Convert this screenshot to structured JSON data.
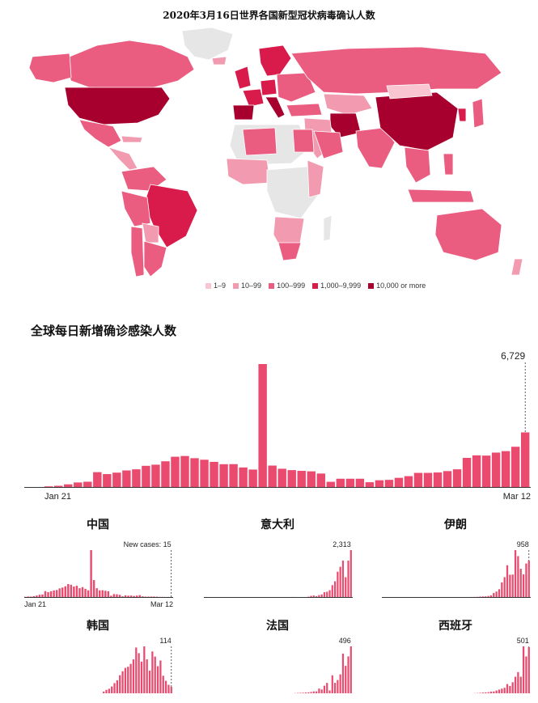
{
  "map": {
    "title": "2020年3月16日世界各国新型冠状病毒确认人数",
    "legend": [
      {
        "label": "1–9",
        "color": "#f8c5d1"
      },
      {
        "label": "10–99",
        "color": "#f29ab0"
      },
      {
        "label": "100–999",
        "color": "#ea5d80"
      },
      {
        "label": "1,000–9,999",
        "color": "#d81b4a"
      },
      {
        "label": "10,000 or more",
        "color": "#a8002e"
      }
    ],
    "no_data_color": "#e6e6e6"
  },
  "chart_data": [
    {
      "type": "bar",
      "title": "全球每日新增确诊感染人数",
      "x_start_label": "Jan 21",
      "x_end_label": "Mar 12",
      "last_value_label": "6,729",
      "values": [
        80,
        150,
        330,
        560,
        650,
        1830,
        1590,
        1770,
        2040,
        2180,
        2610,
        2750,
        3170,
        3730,
        3820,
        3550,
        3360,
        3100,
        2810,
        2820,
        2410,
        2150,
        15150,
        2640,
        2250,
        2080,
        1990,
        1930,
        1660,
        640,
        1020,
        1020,
        1020,
        590,
        830,
        880,
        1130,
        1340,
        1740,
        1740,
        1790,
        1960,
        2180,
        3590,
        3900,
        3870,
        4240,
        4420,
        4960,
        6729
      ],
      "color": "#ea4a6e"
    },
    {
      "type": "bar",
      "title": "中国",
      "x_start_label": "Jan 21",
      "x_end_label": "Mar 12",
      "last_value_label": "New cases: 15",
      "values": [
        77,
        149,
        131,
        259,
        444,
        688,
        769,
        1771,
        1459,
        1737,
        1982,
        2102,
        2590,
        2829,
        3235,
        3887,
        3694,
        3143,
        3385,
        2652,
        2973,
        2467,
        2015,
        14108,
        5090,
        2641,
        2008,
        2048,
        1886,
        1749,
        391,
        889,
        823,
        648,
        214,
        508,
        406,
        433,
        327,
        427,
        573,
        202,
        125,
        119,
        139,
        143,
        99,
        44,
        40,
        19,
        24,
        15
      ],
      "color": "#ea4a6e"
    },
    {
      "type": "bar",
      "title": "意大利",
      "last_value_label": "2,313",
      "values": [
        0,
        0,
        0,
        0,
        0,
        0,
        0,
        0,
        0,
        0,
        0,
        0,
        0,
        0,
        0,
        0,
        0,
        0,
        0,
        0,
        0,
        0,
        0,
        0,
        0,
        0,
        0,
        0,
        0,
        0,
        0,
        0,
        0,
        3,
        0,
        0,
        0,
        0,
        0,
        17,
        59,
        76,
        43,
        95,
        128,
        236,
        259,
        336,
        584,
        779,
        1247,
        1492,
        1797,
        977,
        1797,
        2313
      ],
      "color": "#ea4a6e"
    },
    {
      "type": "bar",
      "title": "伊朗",
      "last_value_label": "958",
      "values": [
        0,
        0,
        0,
        0,
        0,
        0,
        0,
        0,
        0,
        0,
        0,
        0,
        0,
        0,
        0,
        0,
        0,
        0,
        0,
        0,
        0,
        0,
        0,
        0,
        0,
        0,
        0,
        0,
        0,
        0,
        0,
        0,
        0,
        2,
        3,
        5,
        10,
        15,
        18,
        28,
        44,
        106,
        143,
        205,
        385,
        523,
        835,
        586,
        591,
        1234,
        1076,
        743,
        595,
        881,
        958
      ],
      "color": "#ea4a6e"
    },
    {
      "type": "bar",
      "title": "韩国",
      "last_value_label": "114",
      "values": [
        0,
        0,
        0,
        0,
        0,
        0,
        0,
        0,
        0,
        0,
        0,
        0,
        0,
        0,
        0,
        0,
        0,
        0,
        0,
        0,
        0,
        0,
        0,
        0,
        0,
        0,
        0,
        0,
        0,
        30,
        60,
        80,
        120,
        180,
        230,
        320,
        390,
        450,
        470,
        520,
        600,
        810,
        710,
        560,
        830,
        600,
        400,
        740,
        650,
        480,
        580,
        310,
        220,
        150,
        114
      ],
      "color": "#ea4a6e"
    },
    {
      "type": "bar",
      "title": "法国",
      "last_value_label": "496",
      "values": [
        0,
        0,
        0,
        0,
        0,
        0,
        0,
        0,
        0,
        0,
        0,
        0,
        0,
        0,
        0,
        0,
        0,
        0,
        0,
        0,
        0,
        0,
        0,
        0,
        0,
        0,
        0,
        0,
        0,
        0,
        0,
        0,
        0,
        0,
        2,
        4,
        5,
        6,
        8,
        10,
        14,
        20,
        20,
        50,
        40,
        80,
        110,
        30,
        190,
        110,
        140,
        200,
        420,
        290,
        390,
        496
      ],
      "color": "#ea4a6e"
    },
    {
      "type": "bar",
      "title": "西班牙",
      "last_value_label": "501",
      "values": [
        0,
        0,
        0,
        0,
        0,
        0,
        0,
        0,
        0,
        0,
        0,
        0,
        0,
        0,
        0,
        0,
        0,
        0,
        0,
        0,
        0,
        0,
        0,
        0,
        0,
        0,
        0,
        0,
        0,
        0,
        0,
        0,
        0,
        0,
        2,
        3,
        5,
        8,
        10,
        12,
        18,
        20,
        30,
        40,
        50,
        60,
        100,
        80,
        120,
        180,
        230,
        180,
        510,
        400,
        501
      ],
      "color": "#ea4a6e"
    }
  ]
}
